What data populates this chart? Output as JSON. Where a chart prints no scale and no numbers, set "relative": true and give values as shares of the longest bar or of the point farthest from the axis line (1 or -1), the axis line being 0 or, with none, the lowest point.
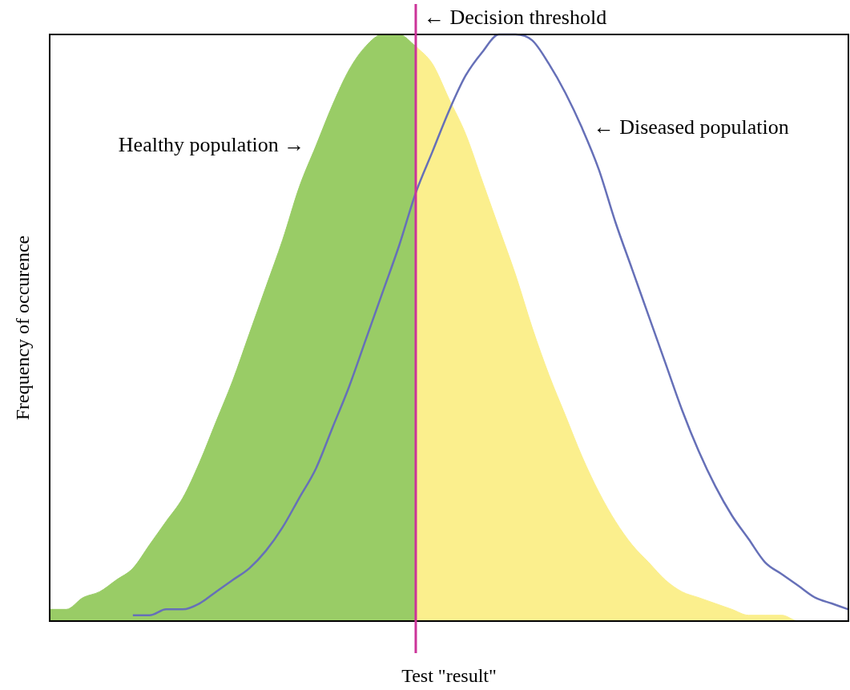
{
  "chart_data": {
    "type": "area",
    "relative": true,
    "xlabel": "Test \"result\"",
    "ylabel": "Frequency of occurence",
    "tick_labels": false,
    "grid": false,
    "legend": false,
    "marker": "none",
    "categories": [
      null,
      null,
      null,
      null,
      null,
      null,
      null,
      null,
      null,
      null,
      null,
      null,
      null,
      null,
      null,
      null,
      null,
      null,
      null,
      null,
      null,
      null,
      null,
      null,
      null,
      null,
      null,
      null,
      null,
      null,
      null,
      null,
      null,
      null,
      null,
      null,
      null,
      null,
      null,
      null,
      null,
      null,
      null,
      null,
      null,
      null,
      null,
      null,
      null
    ],
    "series": [
      {
        "name": "Healthy population →",
        "color": "#99cc66",
        "values": [
          0.02,
          0.02,
          0.04,
          0.05,
          0.07,
          0.09,
          0.13,
          0.17,
          0.21,
          0.27,
          0.34,
          0.41,
          0.49,
          0.57,
          0.65,
          0.74,
          0.81,
          0.88,
          0.94,
          0.98,
          1.0,
          1.0,
          0.98,
          null,
          null,
          null,
          null,
          null,
          null,
          null,
          null,
          null,
          null,
          null,
          null,
          null,
          null,
          null,
          null,
          null,
          null,
          null,
          null,
          null,
          null,
          null,
          null,
          null,
          null
        ]
      },
      {
        "color": "#fbef8d",
        "values": [
          null,
          null,
          null,
          null,
          null,
          null,
          null,
          null,
          null,
          null,
          null,
          null,
          null,
          null,
          null,
          null,
          null,
          null,
          null,
          null,
          null,
          null,
          0.98,
          0.95,
          0.89,
          0.83,
          0.75,
          0.67,
          0.59,
          0.5,
          0.42,
          0.35,
          0.28,
          0.22,
          0.17,
          0.13,
          0.1,
          0.07,
          0.05,
          0.04,
          0.03,
          0.02,
          0.01,
          0.01,
          0.01,
          0.0,
          0.0,
          0.0,
          0.0
        ]
      },
      {
        "type": "line",
        "name": "← Diseased population",
        "color": "#6670b8",
        "values": [
          null,
          null,
          null,
          null,
          null,
          0.01,
          0.01,
          0.02,
          0.02,
          0.03,
          0.05,
          0.07,
          0.09,
          0.12,
          0.16,
          0.21,
          0.26,
          0.33,
          0.4,
          0.48,
          0.56,
          0.64,
          0.73,
          0.8,
          0.87,
          0.93,
          0.97,
          1.0,
          1.0,
          0.99,
          0.95,
          0.9,
          0.84,
          0.77,
          0.68,
          0.6,
          0.52,
          0.44,
          0.36,
          0.29,
          0.23,
          0.18,
          0.14,
          0.1,
          0.08,
          0.06,
          0.04,
          0.03,
          0.02
        ]
      }
    ],
    "annotations": [
      "← Decision threshold"
    ]
  }
}
